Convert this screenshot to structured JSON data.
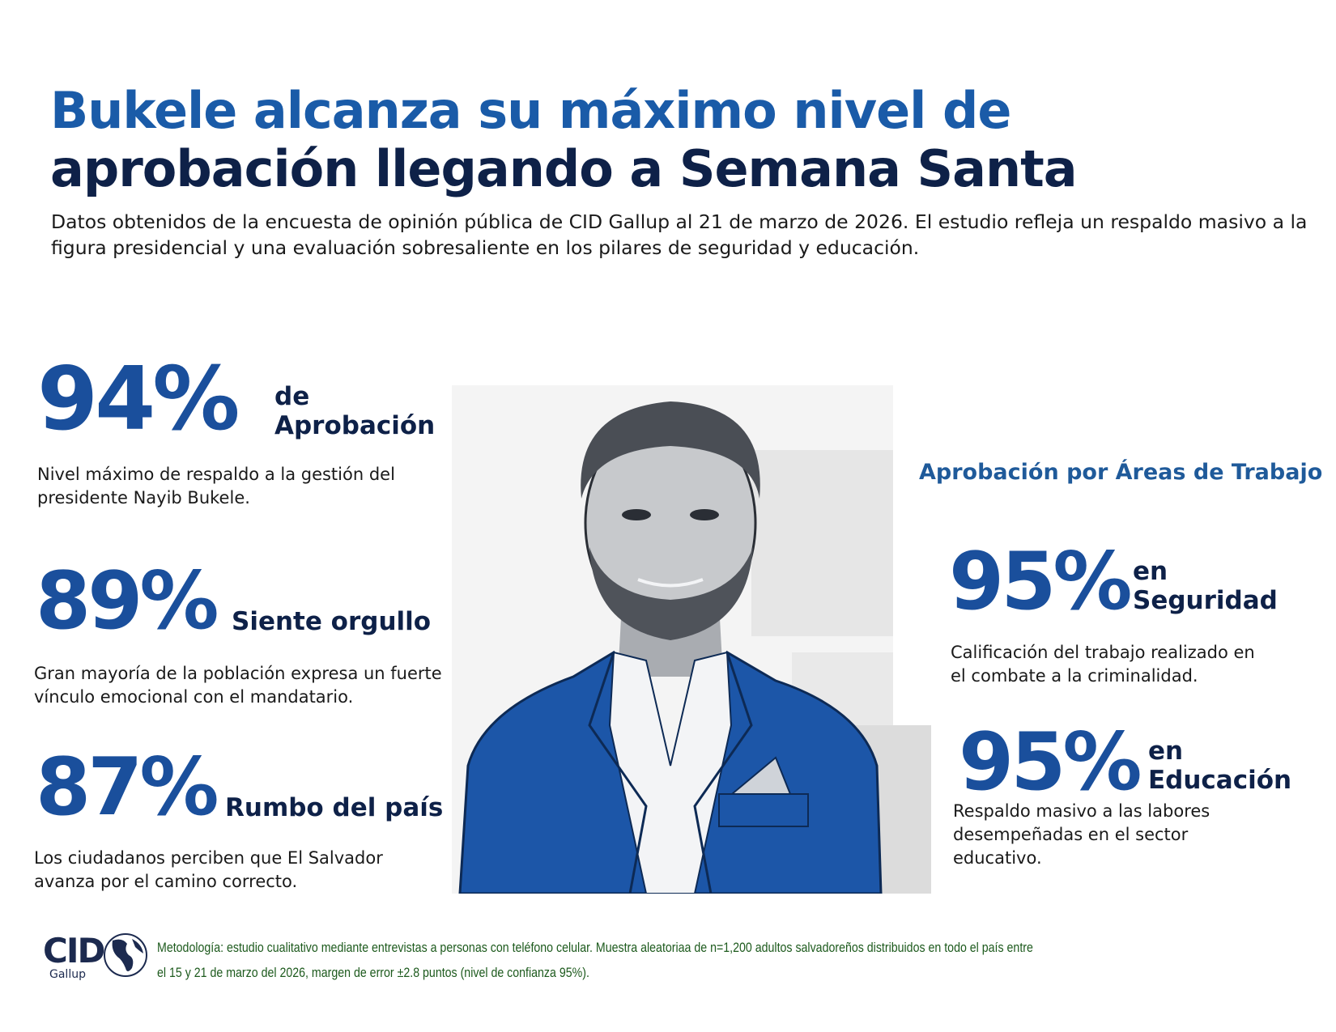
{
  "header": {
    "title_line1": "Bukele alcanza su máximo nivel de",
    "title_line2": "aprobación llegando a Semana Santa",
    "subtitle": "Datos obtenidos de la encuesta de opinión pública de CID Gallup al 21 de marzo de 2026. El estudio refleja un respaldo masivo a la figura presidencial y una evaluación sobresaliente en los pilares de seguridad y educación."
  },
  "left_stats": [
    {
      "value": "94%",
      "label_line1": "de",
      "label_line2": "Aprobación",
      "description": "Nivel máximo de respaldo a la gestión del presidente Nayib Bukele."
    },
    {
      "value": "89%",
      "label": "Siente orgullo",
      "description": "Gran mayoría de la población expresa un fuerte vínculo emocional con el mandatario."
    },
    {
      "value": "87%",
      "label": "Rumbo del país",
      "description": "Los ciudadanos perciben que El Salvador avanza por el camino correcto."
    }
  ],
  "right_section": {
    "heading": "Aprobación por Áreas de Trabajo",
    "stats": [
      {
        "value": "95%",
        "label_line1": "en",
        "label_line2": "Seguridad",
        "description": "Calificación del trabajo realizado en el combate a la criminalidad."
      },
      {
        "value": "95%",
        "label_line1": "en",
        "label_line2": "Educación",
        "description": "Respaldo masivo a las labores desempeñadas en el sector educativo."
      }
    ]
  },
  "footer": {
    "logo_text": "CID",
    "logo_subtext": "Gallup",
    "methodology_line1": "Metodología: estudio cualitativo mediante entrevistas a personas con teléfono celular. Muestra  aleatoriaa de n=1,200 adultos salvadoreños distribuidos en todo el país entre",
    "methodology_line2": "el 15 y 21 de marzo del 2026, margen de error ±2.8 puntos (nivel de confianza 95%)."
  },
  "colors": {
    "title_blue": "#1a5ba8",
    "navy": "#0e2148",
    "stat_blue": "#1a4f9c",
    "footer_green": "#1d5a1d"
  }
}
